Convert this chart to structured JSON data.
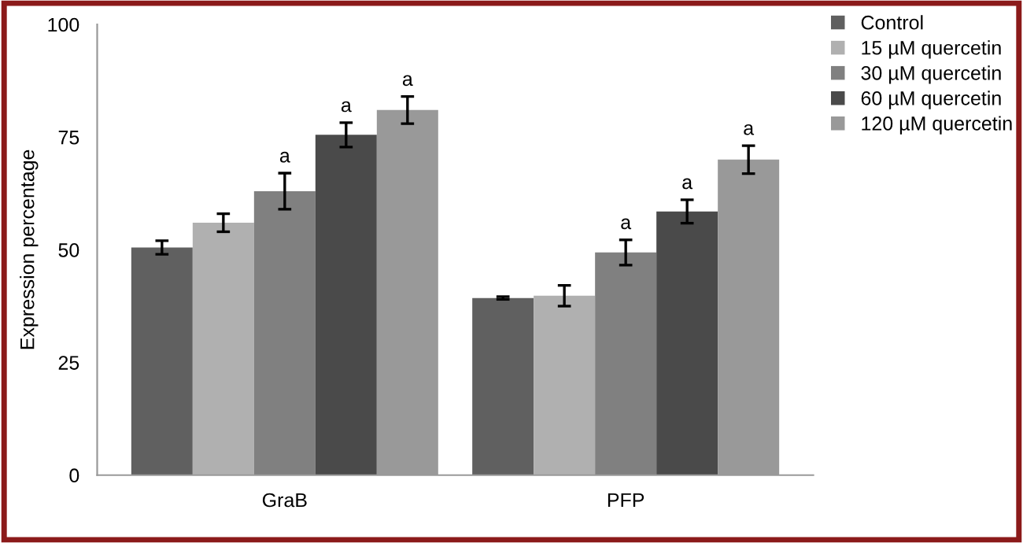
{
  "chart_data": {
    "type": "bar",
    "ylabel": "Expression percentage",
    "categories": [
      "GraB",
      "PFP"
    ],
    "series": [
      {
        "name": "Control",
        "color": "#606060",
        "values": [
          50.5,
          39.3
        ],
        "errors": [
          1.5,
          0.3
        ]
      },
      {
        "name": "15 µM quercetin",
        "color": "#b0b0b0",
        "values": [
          56,
          39.8
        ],
        "errors": [
          2,
          2.3
        ]
      },
      {
        "name": "30 µM quercetin",
        "color": "#808080",
        "values": [
          63,
          49.4
        ],
        "errors": [
          4,
          2.8
        ],
        "value_labels": [
          "a",
          "a"
        ]
      },
      {
        "name": "60 µM quercetin",
        "color": "#4a4a4a",
        "values": [
          75.5,
          58.5
        ],
        "errors": [
          2.7,
          2.6
        ],
        "value_labels": [
          "a",
          "a"
        ]
      },
      {
        "name": "120 µM quercetin",
        "color": "#999999",
        "values": [
          81,
          70
        ],
        "errors": [
          3,
          3.1
        ],
        "value_labels": [
          "a",
          "a"
        ]
      }
    ],
    "ylim": [
      0,
      100
    ],
    "yticks": [
      0,
      25,
      50,
      75,
      100
    ],
    "grid": false,
    "legend": "top right"
  }
}
